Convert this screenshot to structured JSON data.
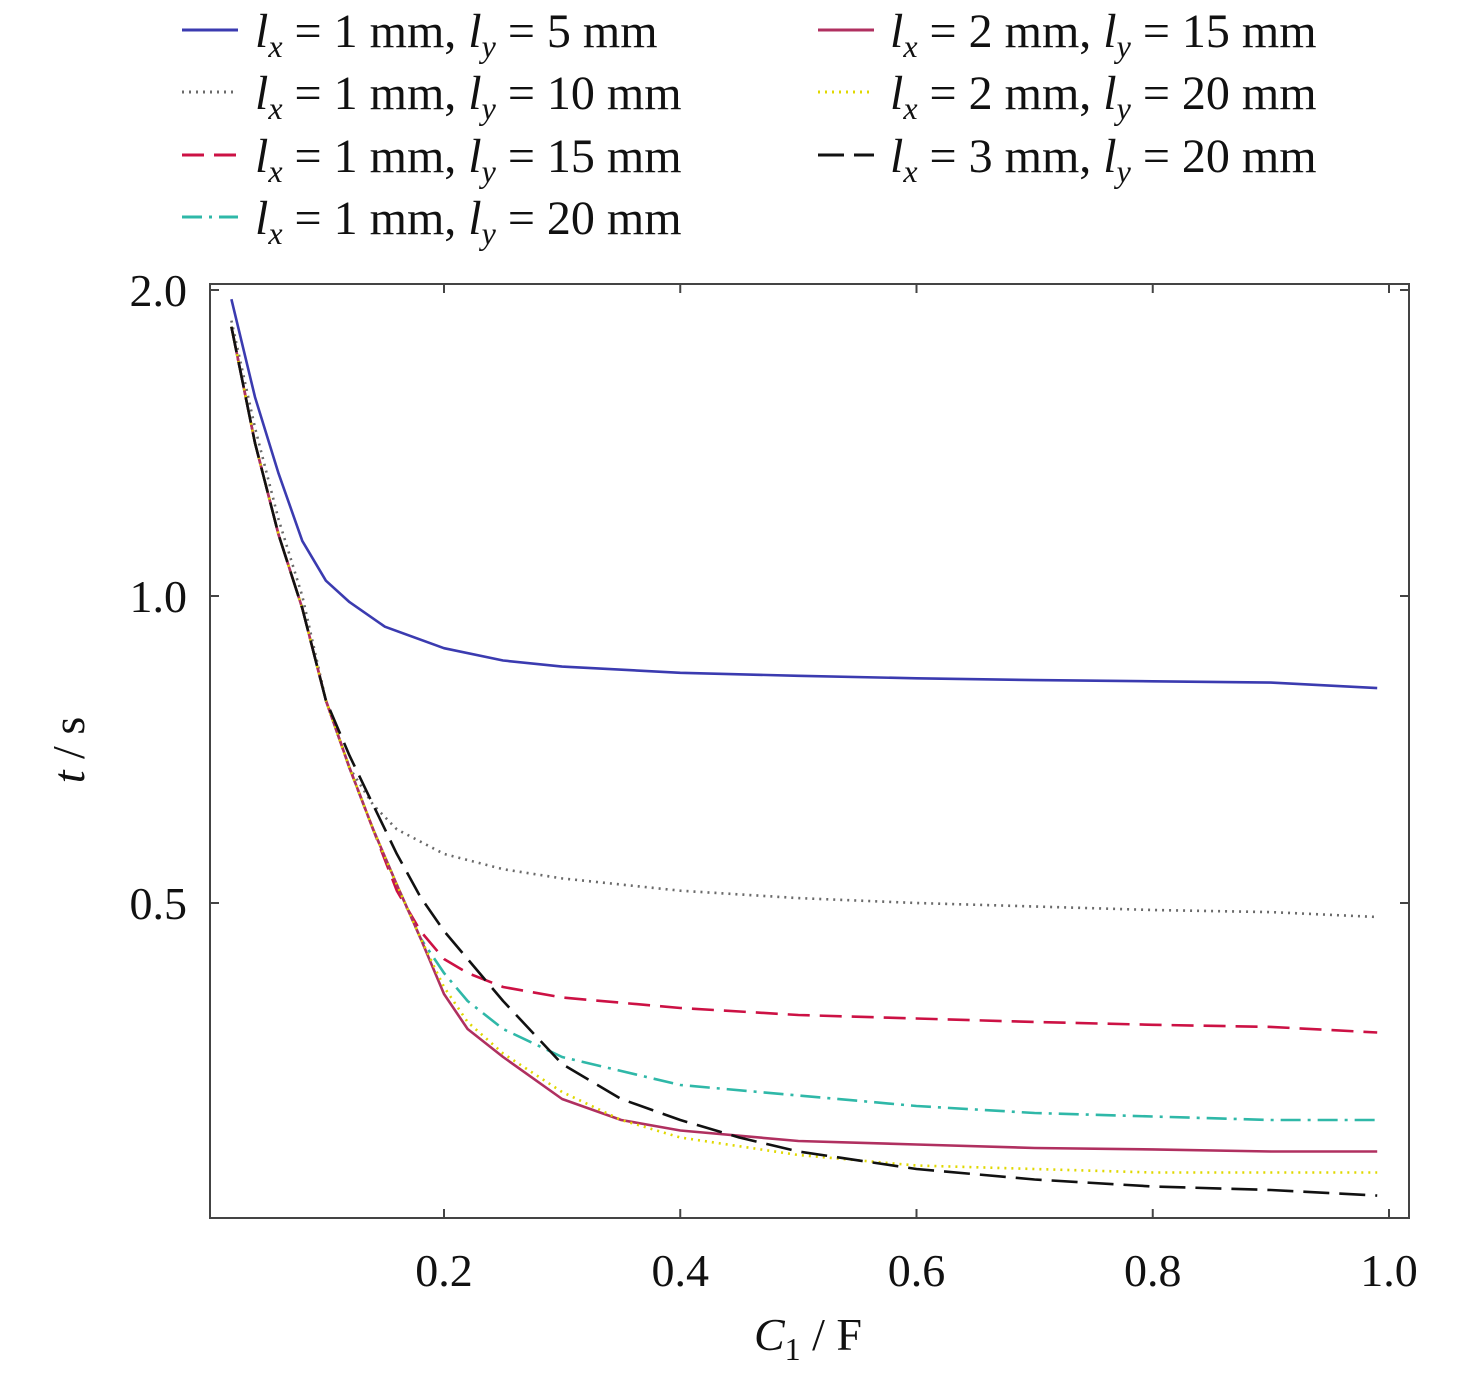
{
  "chart_data": {
    "type": "line",
    "title": "",
    "xlabel": "C1 / F",
    "xlabel_parts": {
      "var": "C",
      "sub": "1",
      "unit": " / F"
    },
    "ylabel": "t / s",
    "ylabel_parts": {
      "var": "t",
      "unit": " / s"
    },
    "xlim": [
      0.0,
      1.0
    ],
    "ylim": [
      0.0,
      2.0
    ],
    "x_ticks": [
      0.2,
      0.4,
      0.6,
      0.8,
      1.0
    ],
    "x_tick_labels": [
      "0.2",
      "0.4",
      "0.6",
      "0.8",
      "1.0"
    ],
    "y_ticks": [
      0.5,
      1.0,
      2.0
    ],
    "y_tick_labels": [
      "0.5",
      "1.0",
      "2.0"
    ],
    "y_axis_segments": [
      {
        "from": 0.0,
        "to": 0.5,
        "data_from": 0.05,
        "data_to": 0.5
      },
      {
        "from": 0.5,
        "to": 1.0,
        "data_from": 0.5,
        "data_to": 1.0
      },
      {
        "from": 1.0,
        "to": 2.0,
        "data_from": 1.0,
        "data_to": 2.0
      }
    ],
    "grid": false,
    "legend_position": "top",
    "series": [
      {
        "name": "lx = 1 mm, ly = 5 mm",
        "lx": "1",
        "ly": "5",
        "color": "#3b3bb0",
        "dash": "solid",
        "x": [
          0.02,
          0.04,
          0.06,
          0.08,
          0.1,
          0.12,
          0.15,
          0.2,
          0.25,
          0.3,
          0.4,
          0.5,
          0.6,
          0.7,
          0.8,
          0.9,
          0.99
        ],
        "y": [
          1.97,
          1.65,
          1.4,
          1.18,
          1.05,
          0.99,
          0.95,
          0.915,
          0.895,
          0.885,
          0.875,
          0.87,
          0.866,
          0.863,
          0.861,
          0.859,
          0.85
        ]
      },
      {
        "name": "lx = 1 mm, ly = 10 mm",
        "lx": "1",
        "ly": "10",
        "color": "#6a6a6a",
        "dash": "dotted",
        "x": [
          0.02,
          0.04,
          0.06,
          0.08,
          0.1,
          0.12,
          0.14,
          0.16,
          0.2,
          0.25,
          0.3,
          0.4,
          0.5,
          0.6,
          0.7,
          0.8,
          0.9,
          0.99
        ],
        "y": [
          1.9,
          1.55,
          1.25,
          1.0,
          0.83,
          0.72,
          0.66,
          0.62,
          0.58,
          0.555,
          0.54,
          0.52,
          0.508,
          0.5,
          0.495,
          0.49,
          0.487,
          0.48
        ]
      },
      {
        "name": "lx = 1 mm, ly = 15 mm",
        "lx": "1",
        "ly": "15",
        "color": "#cc1144",
        "dash": "dashed",
        "x": [
          0.02,
          0.04,
          0.06,
          0.08,
          0.1,
          0.12,
          0.14,
          0.16,
          0.18,
          0.2,
          0.22,
          0.25,
          0.3,
          0.4,
          0.5,
          0.6,
          0.7,
          0.8,
          0.9,
          0.99
        ],
        "y": [
          1.88,
          1.5,
          1.2,
          0.98,
          0.83,
          0.72,
          0.62,
          0.52,
          0.46,
          0.42,
          0.4,
          0.38,
          0.365,
          0.35,
          0.34,
          0.335,
          0.33,
          0.326,
          0.323,
          0.315
        ]
      },
      {
        "name": "lx = 1 mm, ly = 20 mm",
        "lx": "1",
        "ly": "20",
        "color": "#2fb8a8",
        "dash": "dashdot",
        "x": [
          0.02,
          0.04,
          0.06,
          0.08,
          0.1,
          0.12,
          0.14,
          0.16,
          0.18,
          0.2,
          0.22,
          0.25,
          0.3,
          0.4,
          0.5,
          0.6,
          0.7,
          0.8,
          0.9,
          0.99
        ],
        "y": [
          1.88,
          1.5,
          1.2,
          0.98,
          0.83,
          0.72,
          0.62,
          0.53,
          0.45,
          0.4,
          0.36,
          0.32,
          0.28,
          0.24,
          0.225,
          0.21,
          0.2,
          0.195,
          0.19,
          0.19
        ]
      },
      {
        "name": "lx = 2 mm, ly = 15 mm",
        "lx": "2",
        "ly": "15",
        "color": "#b03060",
        "dash": "solid",
        "x": [
          0.02,
          0.04,
          0.06,
          0.08,
          0.1,
          0.12,
          0.14,
          0.16,
          0.18,
          0.2,
          0.22,
          0.25,
          0.3,
          0.35,
          0.4,
          0.5,
          0.6,
          0.7,
          0.8,
          0.9,
          0.99
        ],
        "y": [
          1.88,
          1.5,
          1.2,
          0.98,
          0.83,
          0.72,
          0.62,
          0.53,
          0.45,
          0.37,
          0.32,
          0.28,
          0.22,
          0.19,
          0.175,
          0.16,
          0.155,
          0.15,
          0.148,
          0.145,
          0.145
        ]
      },
      {
        "name": "lx = 2 mm, ly = 20 mm",
        "lx": "2",
        "ly": "20",
        "color": "#e0d800",
        "dash": "dotted",
        "x": [
          0.02,
          0.04,
          0.06,
          0.08,
          0.1,
          0.12,
          0.14,
          0.16,
          0.18,
          0.2,
          0.22,
          0.25,
          0.3,
          0.35,
          0.4,
          0.5,
          0.6,
          0.7,
          0.8,
          0.9,
          0.99
        ],
        "y": [
          1.88,
          1.5,
          1.2,
          0.98,
          0.83,
          0.72,
          0.62,
          0.53,
          0.45,
          0.38,
          0.33,
          0.285,
          0.23,
          0.19,
          0.165,
          0.14,
          0.125,
          0.12,
          0.115,
          0.115,
          0.115
        ]
      },
      {
        "name": "lx = 3 mm, ly = 20 mm",
        "lx": "3",
        "ly": "20",
        "color": "#111111",
        "dash": "longdash",
        "x": [
          0.02,
          0.04,
          0.06,
          0.08,
          0.1,
          0.12,
          0.14,
          0.16,
          0.18,
          0.2,
          0.22,
          0.25,
          0.3,
          0.35,
          0.4,
          0.45,
          0.5,
          0.6,
          0.7,
          0.8,
          0.9,
          0.99
        ],
        "y": [
          1.88,
          1.5,
          1.2,
          0.98,
          0.83,
          0.74,
          0.66,
          0.58,
          0.51,
          0.46,
          0.42,
          0.36,
          0.27,
          0.22,
          0.19,
          0.165,
          0.145,
          0.12,
          0.105,
          0.095,
          0.09,
          0.082
        ]
      }
    ]
  }
}
